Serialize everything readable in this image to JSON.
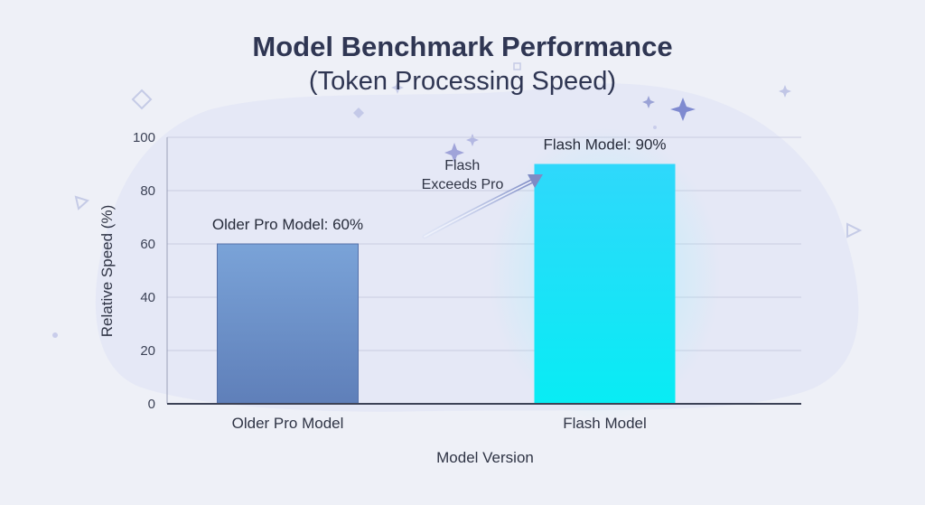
{
  "chart_data": {
    "type": "bar",
    "title": "Model Benchmark Performance",
    "subtitle": "(Token Processing Speed)",
    "xlabel": "Model Version",
    "ylabel": "Relative Speed (%)",
    "ylim": [
      0,
      100
    ],
    "yticks": [
      0,
      20,
      40,
      60,
      80,
      100
    ],
    "grid": true,
    "categories": [
      "Older Pro Model",
      "Flash Model"
    ],
    "values": [
      60,
      90
    ],
    "data_labels": [
      "Older Pro Model: 60%",
      "Flash Model: 90%"
    ],
    "bar_colors": [
      "#6f97cf",
      "#19e1f7"
    ],
    "annotation": {
      "lines": [
        "Flash",
        "Exceeds Pro"
      ]
    }
  }
}
